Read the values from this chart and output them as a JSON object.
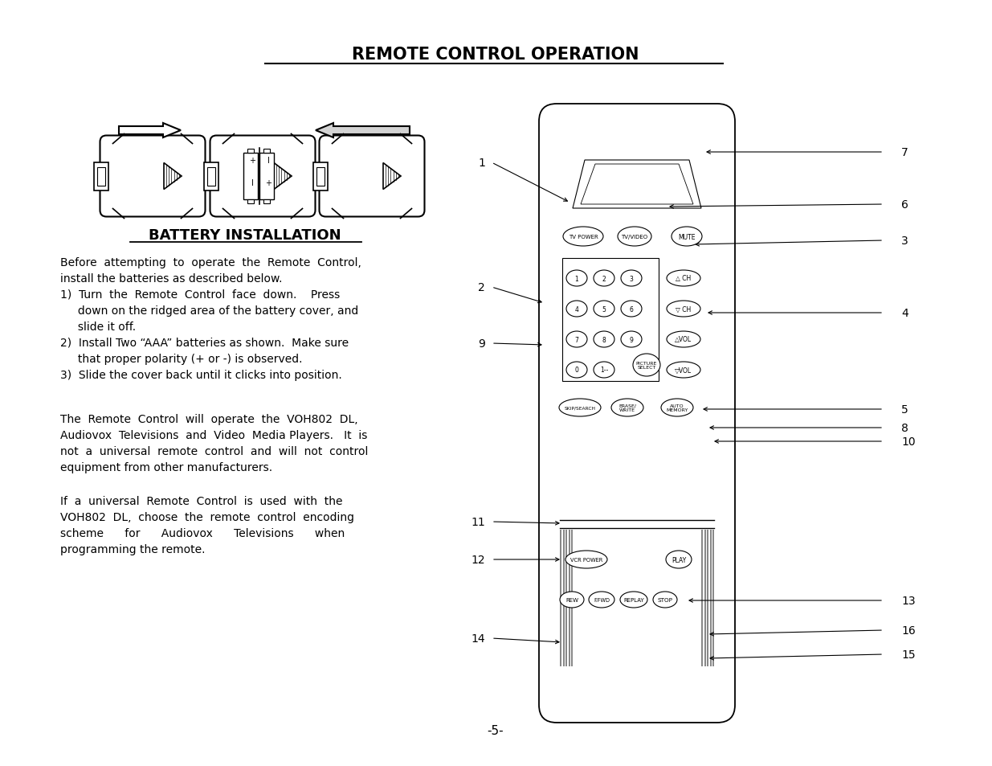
{
  "title": "REMOTE CONTROL OPERATION",
  "battery_title": "BATTERY INSTALLATION",
  "page_number": "-5-",
  "bg_color": "#ffffff",
  "text_color": "#000000",
  "battery_text_lines": [
    "Before  attempting  to  operate  the  Remote  Control,",
    "install the batteries as described below.",
    "1)  Turn  the  Remote  Control  face  down.    Press",
    "     down on the ridged area of the battery cover, and",
    "     slide it off.",
    "2)  Install Two “AAA” batteries as shown.  Make sure",
    "     that proper polarity (+ or -) is observed.",
    "3)  Slide the cover back until it clicks into position."
  ],
  "para1_lines": [
    "The  Remote  Control  will  operate  the  VOH802  DL,",
    "Audiovox  Televisions  and  Video  Media Players.   It  is",
    "not  a  universal  remote  control  and  will  not  control",
    "equipment from other manufacturers."
  ],
  "para2_lines": [
    "If  a  universal  Remote  Control  is  used  with  the",
    "VOH802  DL,  choose  the  remote  control  encoding",
    "scheme      for      Audiovox      Televisions      when",
    "programming the remote."
  ],
  "callouts": [
    [
      "1",
      612,
      203,
      710,
      253
    ],
    [
      "2",
      612,
      358,
      678,
      378
    ],
    [
      "3",
      1100,
      300,
      862,
      305
    ],
    [
      "4",
      1100,
      390,
      878,
      390
    ],
    [
      "5",
      1100,
      510,
      872,
      510
    ],
    [
      "6",
      1100,
      255,
      830,
      258
    ],
    [
      "7",
      1100,
      190,
      876,
      190
    ],
    [
      "8",
      1100,
      533,
      880,
      533
    ],
    [
      "9",
      612,
      428,
      678,
      430
    ],
    [
      "10",
      1100,
      550,
      886,
      550
    ],
    [
      "11",
      612,
      650,
      700,
      652
    ],
    [
      "12",
      612,
      697,
      700,
      697
    ],
    [
      "13",
      1100,
      748,
      854,
      748
    ],
    [
      "14",
      612,
      795,
      700,
      800
    ],
    [
      "15",
      1100,
      815,
      880,
      820
    ],
    [
      "16",
      1100,
      785,
      880,
      790
    ]
  ]
}
